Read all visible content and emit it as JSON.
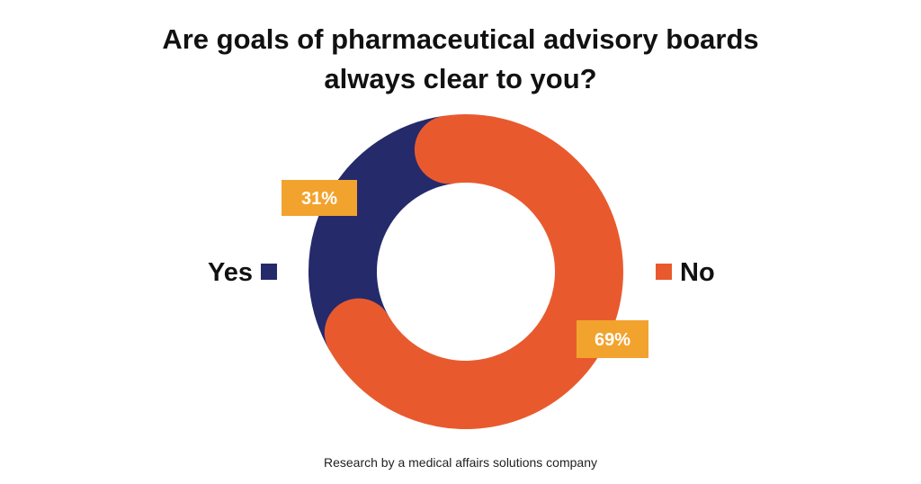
{
  "title_lines": [
    "Are goals of pharmaceutical advisory boards",
    "always clear to you?"
  ],
  "source_note": "Research by a medical affairs solutions company",
  "colors": {
    "yes": "#252a6b",
    "no": "#e85a2e",
    "label_box": "#f2a32e",
    "label_text": "#ffffff",
    "text": "#111111"
  },
  "chart_data": {
    "type": "pie",
    "style": "donut",
    "title": "Are goals of pharmaceutical advisory boards always clear to you?",
    "categories": [
      "Yes",
      "No"
    ],
    "values": [
      31,
      69
    ],
    "value_labels": [
      "31%",
      "69%"
    ],
    "unit": "%",
    "legend": [
      {
        "label": "Yes",
        "placement": "left"
      },
      {
        "label": "No",
        "placement": "right"
      }
    ]
  }
}
